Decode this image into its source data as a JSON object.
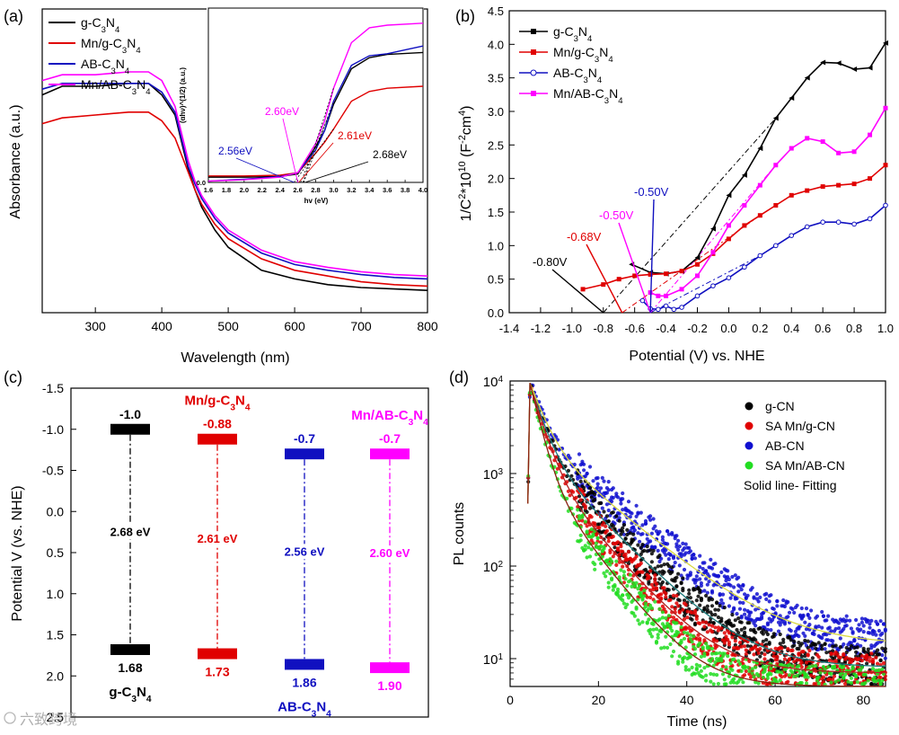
{
  "chart_data": [
    {
      "panel": "(a)",
      "type": "line",
      "xlabel": "Wavelength (nm)",
      "ylabel": "Absorbance (a.u.)",
      "xlim": [
        220,
        800
      ],
      "xticks": [
        "300",
        "400",
        "500",
        "600",
        "700",
        "800"
      ],
      "legend_position": "top-left",
      "series": [
        {
          "name": "g-C3N4",
          "label_parts": [
            "g-C",
            "3",
            "N",
            "4"
          ],
          "color": "#000000",
          "x": [
            220,
            250,
            300,
            350,
            380,
            400,
            420,
            440,
            450,
            460,
            480,
            500,
            550,
            600,
            650,
            700,
            750,
            800
          ],
          "y": [
            0.72,
            0.75,
            0.75,
            0.76,
            0.76,
            0.72,
            0.65,
            0.46,
            0.39,
            0.33,
            0.25,
            0.19,
            0.11,
            0.08,
            0.06,
            0.05,
            0.045,
            0.04
          ]
        },
        {
          "name": "Mn/g-C3N4",
          "label_parts": [
            "Mn/g-C",
            "3",
            "N",
            "4"
          ],
          "color": "#e00000",
          "x": [
            220,
            250,
            300,
            350,
            380,
            400,
            420,
            440,
            450,
            460,
            480,
            500,
            550,
            600,
            650,
            700,
            750,
            800
          ],
          "y": [
            0.62,
            0.64,
            0.65,
            0.66,
            0.66,
            0.63,
            0.57,
            0.45,
            0.39,
            0.34,
            0.27,
            0.22,
            0.15,
            0.11,
            0.09,
            0.07,
            0.06,
            0.055
          ]
        },
        {
          "name": "AB-C3N4",
          "label_parts": [
            "AB-C",
            "3",
            "N",
            "4"
          ],
          "color": "#1010c0",
          "x": [
            220,
            250,
            300,
            350,
            380,
            400,
            420,
            440,
            450,
            460,
            480,
            500,
            550,
            600,
            650,
            700,
            750,
            800
          ],
          "y": [
            0.74,
            0.76,
            0.76,
            0.76,
            0.76,
            0.73,
            0.66,
            0.47,
            0.41,
            0.36,
            0.29,
            0.24,
            0.17,
            0.13,
            0.11,
            0.095,
            0.085,
            0.08
          ]
        },
        {
          "name": "Mn/AB-C3N4",
          "label_parts": [
            "Mn/AB-C",
            "3",
            "N",
            "4"
          ],
          "color": "#ff00ff",
          "x": [
            220,
            250,
            300,
            350,
            380,
            400,
            420,
            440,
            450,
            460,
            480,
            500,
            550,
            600,
            650,
            700,
            750,
            800
          ],
          "y": [
            0.77,
            0.79,
            0.79,
            0.8,
            0.8,
            0.77,
            0.68,
            0.49,
            0.42,
            0.37,
            0.3,
            0.25,
            0.18,
            0.14,
            0.12,
            0.105,
            0.095,
            0.09
          ]
        }
      ],
      "inset": {
        "xlabel": "hv (eV)",
        "ylabel": "(αhν)^(1/2) (a.u.)",
        "xlim": [
          1.6,
          4.0
        ],
        "xticks": [
          "1.6",
          "1.8",
          "2.0",
          "2.2",
          "2.4",
          "2.6",
          "2.8",
          "3.0",
          "3.2",
          "3.4",
          "3.6",
          "3.8",
          "4.0"
        ],
        "yticks": [
          "0.0"
        ],
        "series": [
          {
            "name": "g-C3N4",
            "color": "#000000",
            "x": [
              1.6,
              2.0,
              2.4,
              2.6,
              2.8,
              2.9,
              3.0,
              3.2,
              3.4,
              3.6,
              4.0
            ],
            "y": [
              0.08,
              0.08,
              0.09,
              0.13,
              0.55,
              0.8,
              1.2,
              1.75,
              1.92,
              1.97,
              2.0
            ]
          },
          {
            "name": "Mn/g-C3N4",
            "color": "#e00000",
            "x": [
              1.6,
              2.0,
              2.4,
              2.6,
              2.8,
              2.9,
              3.0,
              3.2,
              3.4,
              3.6,
              4.0
            ],
            "y": [
              0.1,
              0.1,
              0.11,
              0.15,
              0.45,
              0.62,
              0.82,
              1.25,
              1.4,
              1.45,
              1.48
            ]
          },
          {
            "name": "AB-C3N4",
            "color": "#1010c0",
            "x": [
              1.6,
              2.0,
              2.4,
              2.6,
              2.8,
              2.9,
              3.0,
              3.2,
              3.4,
              3.6,
              4.0
            ],
            "y": [
              0.02,
              0.05,
              0.09,
              0.15,
              0.5,
              0.8,
              1.25,
              1.8,
              1.95,
              1.98,
              2.1
            ]
          },
          {
            "name": "Mn/AB-C3N4",
            "color": "#ff00ff",
            "x": [
              1.6,
              2.0,
              2.4,
              2.6,
              2.8,
              2.9,
              3.0,
              3.2,
              3.4,
              3.6,
              4.0
            ],
            "y": [
              0.02,
              0.04,
              0.08,
              0.15,
              0.6,
              0.95,
              1.45,
              2.15,
              2.38,
              2.42,
              2.45
            ]
          }
        ],
        "annotations": [
          {
            "text": "2.60eV",
            "color": "#ff00ff",
            "at_x": 2.6
          },
          {
            "text": "2.56eV",
            "color": "#1010c0",
            "at_x": 2.56
          },
          {
            "text": "2.61eV",
            "color": "#e00000",
            "at_x": 2.61
          },
          {
            "text": "2.68eV",
            "color": "#000000",
            "at_x": 2.68
          }
        ]
      }
    },
    {
      "panel": "(b)",
      "type": "line",
      "xlabel": "Potential (V) vs. NHE",
      "ylabel": "1/C2*1010 (F-2cm4)",
      "ylabel_parts": [
        "1/C",
        "2",
        "*10",
        "10",
        " (F",
        "-2",
        "cm",
        "4",
        ")"
      ],
      "xlim": [
        -1.4,
        1.0
      ],
      "ylim": [
        0.0,
        4.5
      ],
      "xticks": [
        "-1.4",
        "-1.2",
        "-1.0",
        "-0.8",
        "-0.6",
        "-0.4",
        "-0.2",
        "0.0",
        "0.2",
        "0.4",
        "0.6",
        "0.8",
        "1.0"
      ],
      "yticks": [
        "0.0",
        "0.5",
        "1.0",
        "1.5",
        "2.0",
        "2.5",
        "3.0",
        "3.5",
        "4.0",
        "4.5"
      ],
      "legend_position": "top-left",
      "series": [
        {
          "name": "g-C3N4",
          "label_parts": [
            "g-C",
            "3",
            "N",
            "4"
          ],
          "color": "#000000",
          "x": [
            -0.62,
            -0.5,
            -0.4,
            -0.3,
            -0.2,
            -0.1,
            0.0,
            0.1,
            0.2,
            0.3,
            0.4,
            0.5,
            0.6,
            0.7,
            0.8,
            0.9,
            1.0
          ],
          "y": [
            0.72,
            0.6,
            0.58,
            0.62,
            0.82,
            1.25,
            1.75,
            2.05,
            2.45,
            2.9,
            3.2,
            3.5,
            3.73,
            3.72,
            3.63,
            3.65,
            4.02
          ]
        },
        {
          "name": "Mn/g-C3N4",
          "label_parts": [
            "Mn/g-C",
            "3",
            "N",
            "4"
          ],
          "color": "#e00000",
          "x": [
            -0.93,
            -0.8,
            -0.7,
            -0.6,
            -0.5,
            -0.4,
            -0.3,
            -0.2,
            -0.1,
            0.0,
            0.1,
            0.2,
            0.3,
            0.4,
            0.5,
            0.6,
            0.7,
            0.8,
            0.9,
            1.0
          ],
          "y": [
            0.35,
            0.42,
            0.5,
            0.55,
            0.57,
            0.58,
            0.62,
            0.72,
            0.88,
            1.1,
            1.3,
            1.45,
            1.6,
            1.75,
            1.82,
            1.88,
            1.9,
            1.92,
            2.0,
            2.2
          ]
        },
        {
          "name": "AB-C3N4",
          "label_parts": [
            "AB-C",
            "3",
            "N",
            "4"
          ],
          "color": "#1010c0",
          "x": [
            -0.55,
            -0.5,
            -0.45,
            -0.4,
            -0.35,
            -0.3,
            -0.2,
            -0.1,
            0.0,
            0.1,
            0.2,
            0.3,
            0.4,
            0.5,
            0.6,
            0.7,
            0.8,
            0.9,
            1.0
          ],
          "y": [
            0.18,
            0.06,
            0.05,
            0.1,
            0.05,
            0.08,
            0.25,
            0.4,
            0.52,
            0.68,
            0.85,
            1.0,
            1.15,
            1.28,
            1.35,
            1.35,
            1.32,
            1.4,
            1.6
          ]
        },
        {
          "name": "Mn/AB-C3N4",
          "label_parts": [
            "Mn/AB-C",
            "3",
            "N",
            "4"
          ],
          "color": "#ff00ff",
          "x": [
            -0.5,
            -0.45,
            -0.4,
            -0.3,
            -0.2,
            -0.1,
            0.0,
            0.1,
            0.2,
            0.3,
            0.4,
            0.5,
            0.6,
            0.7,
            0.8,
            0.9,
            1.0
          ],
          "y": [
            0.3,
            0.25,
            0.25,
            0.35,
            0.55,
            0.9,
            1.3,
            1.6,
            1.9,
            2.2,
            2.45,
            2.6,
            2.55,
            2.38,
            2.4,
            2.65,
            3.05
          ]
        }
      ],
      "annotations": [
        {
          "text": "-0.80V",
          "color": "#000000",
          "at_x": -0.8
        },
        {
          "text": "-0.68V",
          "color": "#e00000",
          "at_x": -0.68
        },
        {
          "text": "-0.50V",
          "color": "#ff00ff",
          "at_x": -0.5
        },
        {
          "text": "-0.50V",
          "color": "#1010c0",
          "at_x": -0.5
        }
      ]
    },
    {
      "panel": "(c)",
      "type": "diagram",
      "ylabel": "Potential V (vs. NHE)",
      "ylim": [
        -1.5,
        2.5
      ],
      "yticks": [
        "-1.5",
        "-1.0",
        "-0.5",
        "0.0",
        "0.5",
        "1.0",
        "1.5",
        "2.0",
        "2.5"
      ],
      "materials": [
        {
          "name": "g-C3N4",
          "label_parts": [
            "g-C",
            "3",
            "N",
            "4"
          ],
          "label_position": "bottom",
          "color": "#000000",
          "cb": -1.0,
          "vb": 1.68,
          "cb_label": "-1.0",
          "vb_label": "1.68",
          "gap_label": "2.68 eV"
        },
        {
          "name": "Mn/g-C3N4",
          "label_parts": [
            "Mn/g-C",
            "3",
            "N",
            "4"
          ],
          "label_position": "top",
          "color": "#e00000",
          "cb": -0.88,
          "vb": 1.73,
          "cb_label": "-0.88",
          "vb_label": "1.73",
          "gap_label": "2.61 eV"
        },
        {
          "name": "AB-C3N4",
          "label_parts": [
            "AB-C",
            "3",
            "N",
            "4"
          ],
          "label_position": "bottom",
          "color": "#1010c0",
          "cb": -0.7,
          "vb": 1.86,
          "cb_label": "-0.7",
          "vb_label": "1.86",
          "gap_label": "2.56 eV"
        },
        {
          "name": "Mn/AB-C3N4",
          "label_parts": [
            "Mn/AB-C",
            "3",
            "N",
            "4"
          ],
          "label_position": "top",
          "color": "#ff00ff",
          "cb": -0.7,
          "vb": 1.9,
          "cb_label": "-0.7",
          "vb_label": "1.90",
          "gap_label": "2.60 eV"
        }
      ]
    },
    {
      "panel": "(d)",
      "type": "scatter",
      "xlabel": "Time (ns)",
      "ylabel": "PL counts",
      "xlim": [
        0,
        85
      ],
      "ylim": [
        5,
        10000
      ],
      "y_scale": "log",
      "xticks": [
        "0",
        "20",
        "40",
        "60",
        "80"
      ],
      "legend_position": "top-right",
      "legend_note": "Solid line- Fitting",
      "series": [
        {
          "name": "g-CN",
          "color": "#000000",
          "tau1": 2.5,
          "a1": 0.8,
          "tau2": 9.0,
          "a2": 0.2,
          "bg": 8
        },
        {
          "name": "SA Mn/g-CN",
          "color": "#e00000",
          "tau1": 2.4,
          "a1": 0.85,
          "tau2": 8.0,
          "a2": 0.15,
          "bg": 7
        },
        {
          "name": "AB-CN",
          "color": "#1010d0",
          "tau1": 2.8,
          "a1": 0.75,
          "tau2": 11.0,
          "a2": 0.25,
          "bg": 14
        },
        {
          "name": "SA Mn/AB-CN",
          "color": "#22dd22",
          "tau1": 2.0,
          "a1": 0.88,
          "tau2": 7.0,
          "a2": 0.12,
          "bg": 5
        }
      ],
      "peak_time": 4.5,
      "peak_counts": 9500
    }
  ],
  "watermark": "六致跨境"
}
